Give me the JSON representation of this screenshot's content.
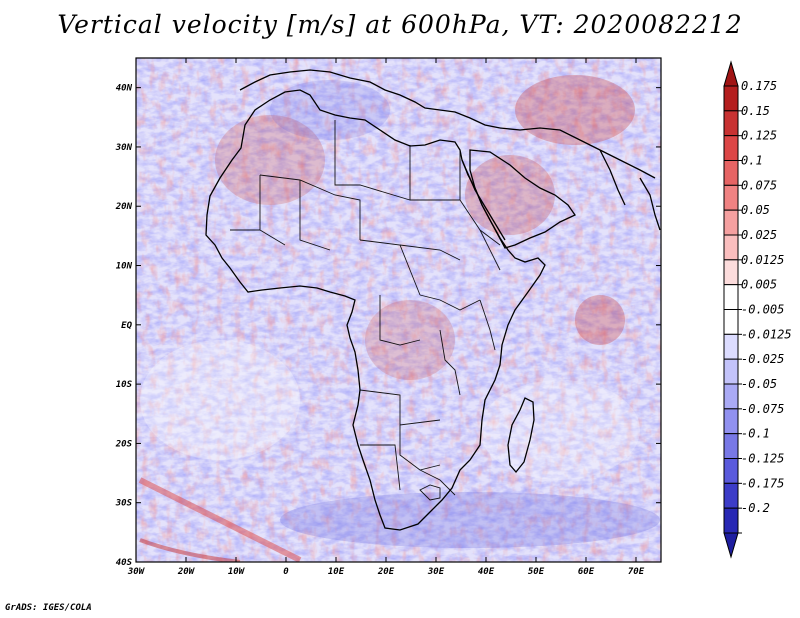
{
  "title": "Vertical velocity [m/s] at 600hPa, VT: 2020082212",
  "credit": "GrADS: IGES/COLA",
  "map": {
    "projection": "latlon",
    "lon_range": [
      -30,
      75
    ],
    "lat_range": [
      -40,
      45
    ],
    "lon_ticks": [
      {
        "lon": -30,
        "label": "30W"
      },
      {
        "lon": -20,
        "label": "20W"
      },
      {
        "lon": -10,
        "label": "10W"
      },
      {
        "lon": 0,
        "label": "0"
      },
      {
        "lon": 10,
        "label": "10E"
      },
      {
        "lon": 20,
        "label": "20E"
      },
      {
        "lon": 30,
        "label": "30E"
      },
      {
        "lon": 40,
        "label": "40E"
      },
      {
        "lon": 50,
        "label": "50E"
      },
      {
        "lon": 60,
        "label": "60E"
      },
      {
        "lon": 70,
        "label": "70E"
      }
    ],
    "lat_ticks": [
      {
        "lat": 40,
        "label": "40N"
      },
      {
        "lat": 30,
        "label": "30N"
      },
      {
        "lat": 20,
        "label": "20N"
      },
      {
        "lat": 10,
        "label": "10N"
      },
      {
        "lat": 0,
        "label": "EQ"
      },
      {
        "lat": -10,
        "label": "10S"
      },
      {
        "lat": -20,
        "label": "20S"
      },
      {
        "lat": -30,
        "label": "30S"
      },
      {
        "lat": -40,
        "label": "40S"
      }
    ],
    "variable": "vertical velocity",
    "units": "m/s",
    "level": "600hPa"
  },
  "colorbar": {
    "levels": [
      {
        "label": "0.175",
        "color": "#b41e1e"
      },
      {
        "label": "0.15",
        "color": "#c83232"
      },
      {
        "label": "0.125",
        "color": "#dc4646"
      },
      {
        "label": "0.1",
        "color": "#e66464"
      },
      {
        "label": "0.075",
        "color": "#f08282"
      },
      {
        "label": "0.05",
        "color": "#f5a0a0"
      },
      {
        "label": "0.025",
        "color": "#fabebe"
      },
      {
        "label": "0.0125",
        "color": "#fcdcdc"
      },
      {
        "label": "0.005",
        "color": "#ffffff"
      },
      {
        "label": "-0.005",
        "color": "#ffffff"
      },
      {
        "label": "-0.0125",
        "color": "#dcdcff"
      },
      {
        "label": "-0.025",
        "color": "#c3c3fa"
      },
      {
        "label": "-0.05",
        "color": "#aaaaf5"
      },
      {
        "label": "-0.075",
        "color": "#9191f0"
      },
      {
        "label": "-0.1",
        "color": "#7878e6"
      },
      {
        "label": "-0.125",
        "color": "#5a5adc"
      },
      {
        "label": "-0.175",
        "color": "#3c3cc8"
      },
      {
        "label": "-0.2",
        "color": "#2828b4"
      }
    ],
    "top_color": "#a01414",
    "bottom_color": "#1e1ea0"
  }
}
